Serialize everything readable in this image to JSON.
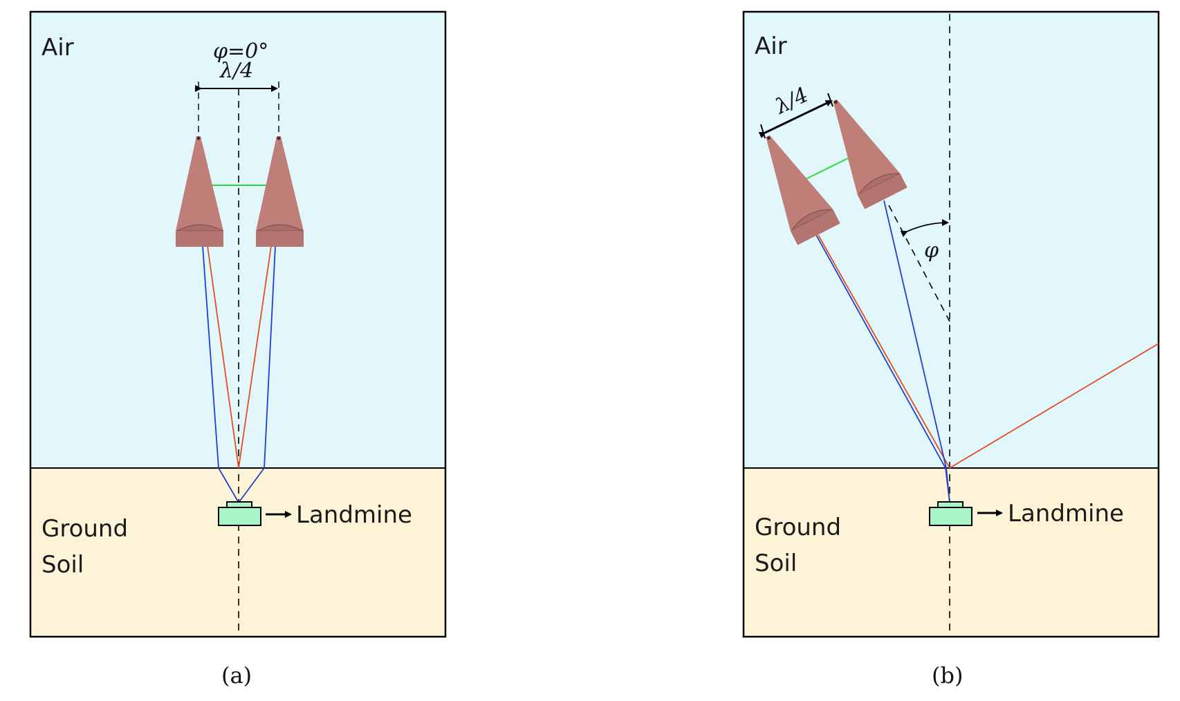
{
  "panel_a": {
    "medium_top": "Air",
    "medium_bottom_line1": "Ground",
    "medium_bottom_line2": "Soil",
    "angle_label": "φ=0°",
    "spacing_label": "λ/4",
    "target_label": "Landmine",
    "caption": "(a)"
  },
  "panel_b": {
    "medium_top": "Air",
    "medium_bottom_line1": "Ground",
    "medium_bottom_line2": "Soil",
    "angle_label": "φ",
    "spacing_label": "λ/4",
    "target_label": "Landmine",
    "caption": "(b)"
  },
  "colors": {
    "air": "#e2f7fb",
    "soil": "#fdf3d6",
    "antenna": "#bf7f78",
    "antenna_dark": "#a5655f",
    "mine": "#a8f5c8",
    "ray_blue": "#1f3fd0",
    "ray_red": "#e64b1e",
    "link_green": "#2ddc3a"
  }
}
